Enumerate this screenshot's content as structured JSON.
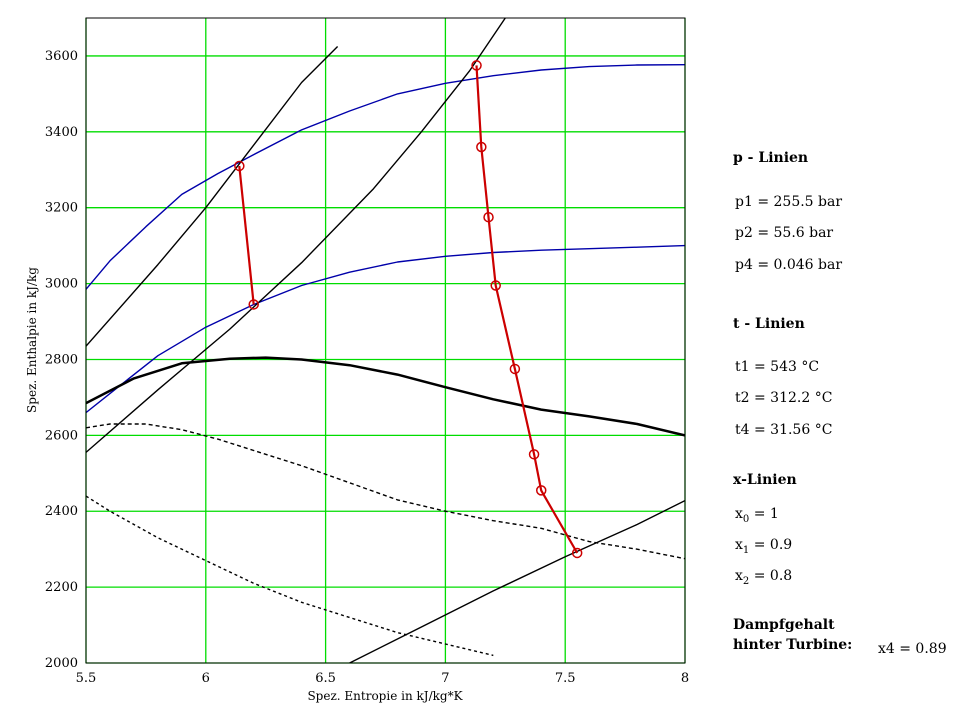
{
  "chart_data": {
    "type": "line",
    "xlabel": "Spez. Entropie in kJ/kg*K",
    "ylabel": "Spez. Enthalpie in kJ/kg",
    "xlim": [
      5.5,
      8
    ],
    "ylim": [
      2000,
      3700
    ],
    "xticks": [
      "5.5",
      "6",
      "6.5",
      "7",
      "7.5",
      "8"
    ],
    "yticks": [
      "2000",
      "2200",
      "2400",
      "2600",
      "2800",
      "3000",
      "3200",
      "3400",
      "3600"
    ],
    "grid": true,
    "series": [
      {
        "style": "isobar",
        "color": "#0000aa",
        "x": [
          5.5,
          5.6,
          5.75,
          5.9,
          6.05,
          6.2,
          6.4,
          6.6,
          6.8,
          7.0,
          7.2,
          7.4,
          7.6,
          7.8,
          8.0
        ],
        "y": [
          2985,
          3060,
          3150,
          3235,
          3290,
          3340,
          3405,
          3455,
          3500,
          3528,
          3548,
          3563,
          3572,
          3576,
          3577
        ]
      },
      {
        "style": "isobar",
        "color": "#0000aa",
        "x": [
          5.5,
          5.65,
          5.8,
          6.0,
          6.2,
          6.4,
          6.6,
          6.8,
          7.0,
          7.2,
          7.4,
          7.6,
          7.8,
          8.0
        ],
        "y": [
          2660,
          2735,
          2810,
          2885,
          2945,
          2995,
          3030,
          3057,
          3072,
          3082,
          3088,
          3092,
          3096,
          3100
        ]
      },
      {
        "style": "isotherm",
        "color": "#000000",
        "x": [
          5.5,
          5.8,
          6.0,
          6.2,
          6.4,
          6.55
        ],
        "y": [
          2835,
          3050,
          3200,
          3365,
          3530,
          3625
        ]
      },
      {
        "style": "isotherm",
        "color": "#000000",
        "x": [
          5.5,
          5.8,
          6.1,
          6.4,
          6.7,
          6.9,
          7.1,
          7.25
        ],
        "y": [
          2555,
          2720,
          2880,
          3055,
          3250,
          3400,
          3560,
          3700
        ]
      },
      {
        "style": "isotherm",
        "color": "#000000",
        "x": [
          6.6,
          6.9,
          7.2,
          7.5,
          7.8,
          8.0
        ],
        "y": [
          2000,
          2095,
          2190,
          2280,
          2365,
          2428
        ]
      },
      {
        "style": "x-line",
        "color": "#000000",
        "x": [
          5.5,
          5.7,
          5.9,
          6.1,
          6.25,
          6.4,
          6.6,
          6.8,
          7.0,
          7.2,
          7.4,
          7.6,
          7.8,
          8.0
        ],
        "y": [
          2685,
          2750,
          2790,
          2802,
          2805,
          2800,
          2785,
          2760,
          2727,
          2695,
          2668,
          2650,
          2630,
          2600
        ]
      },
      {
        "style": "x-line-dashed",
        "color": "#000000",
        "x": [
          5.5,
          5.6,
          5.75,
          5.9,
          6.05,
          6.2,
          6.4,
          6.6,
          6.8,
          7.0,
          7.2,
          7.4,
          7.6,
          7.8,
          8.0
        ],
        "y": [
          2620,
          2630,
          2630,
          2615,
          2590,
          2560,
          2520,
          2475,
          2430,
          2400,
          2375,
          2355,
          2320,
          2300,
          2275
        ]
      },
      {
        "style": "x-line-dotted",
        "color": "#000000",
        "x": [
          5.5,
          5.6,
          5.8,
          6.0,
          6.2,
          6.4,
          6.6,
          6.8,
          7.0,
          7.2
        ],
        "y": [
          2440,
          2400,
          2330,
          2270,
          2210,
          2160,
          2120,
          2080,
          2050,
          2020
        ]
      },
      {
        "style": "process",
        "color": "#cc0000",
        "x": [
          6.14,
          6.2
        ],
        "y": [
          3310,
          2945
        ]
      },
      {
        "style": "process",
        "color": "#cc0000",
        "x": [
          7.13,
          7.15,
          7.18,
          7.21,
          7.29,
          7.37,
          7.4,
          7.55
        ],
        "y": [
          3575,
          3360,
          3175,
          2995,
          2775,
          2550,
          2455,
          2290
        ]
      }
    ]
  },
  "side": {
    "p_heading": "p - Linien",
    "p1": "p1 = 255.5 bar",
    "p2": "p2 = 55.6 bar",
    "p4": "p4 = 0.046 bar",
    "t_heading": "t - Linien",
    "t1": "t1 = 543 °C",
    "t2": "t2 = 312.2 °C",
    "t4": "t4 = 31.56 °C",
    "x_heading": "x-Linien",
    "x0": {
      "base": "x",
      "sub": "0",
      "rest": " = 1"
    },
    "x1": {
      "base": "x",
      "sub": "1",
      "rest": " = 0.9"
    },
    "x2": {
      "base": "x",
      "sub": "2",
      "rest": " = 0.8"
    },
    "steam_heading_1": "Dampfgehalt",
    "steam_heading_2": "hinter Turbine:",
    "x4": "x4 = 0.89"
  }
}
